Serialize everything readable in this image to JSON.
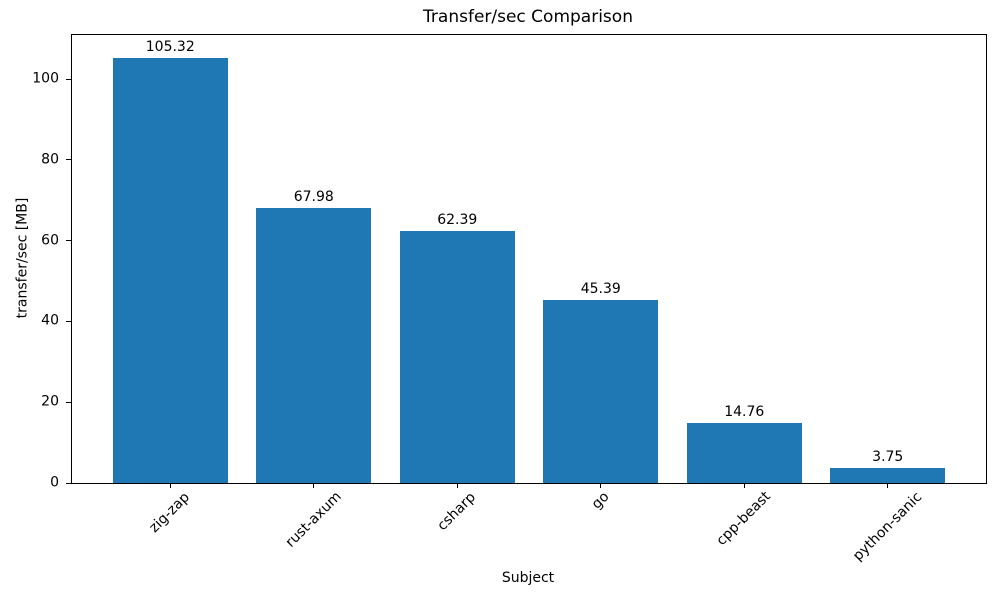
{
  "chart_data": {
    "type": "bar",
    "title": "Transfer/sec Comparison",
    "xlabel": "Subject",
    "ylabel": "transfer/sec [MB]",
    "categories": [
      "zig-zap",
      "rust-axum",
      "csharp",
      "go",
      "cpp-beast",
      "python-sanic"
    ],
    "values": [
      105.32,
      67.98,
      62.39,
      45.39,
      14.76,
      3.75
    ],
    "bar_value_labels": [
      "105.32",
      "67.98",
      "62.39",
      "45.39",
      "14.76",
      "3.75"
    ],
    "yticks": [
      0,
      20,
      40,
      60,
      80,
      100
    ],
    "ylim": [
      0,
      110.9
    ],
    "x_tick_label_rotation_deg": 45,
    "bar_width_fraction": 0.8,
    "grid": false,
    "legend_position": "none",
    "colors": {
      "bar": "#1f77b4",
      "axis": "#000000",
      "text": "#000000",
      "background": "#ffffff"
    }
  }
}
